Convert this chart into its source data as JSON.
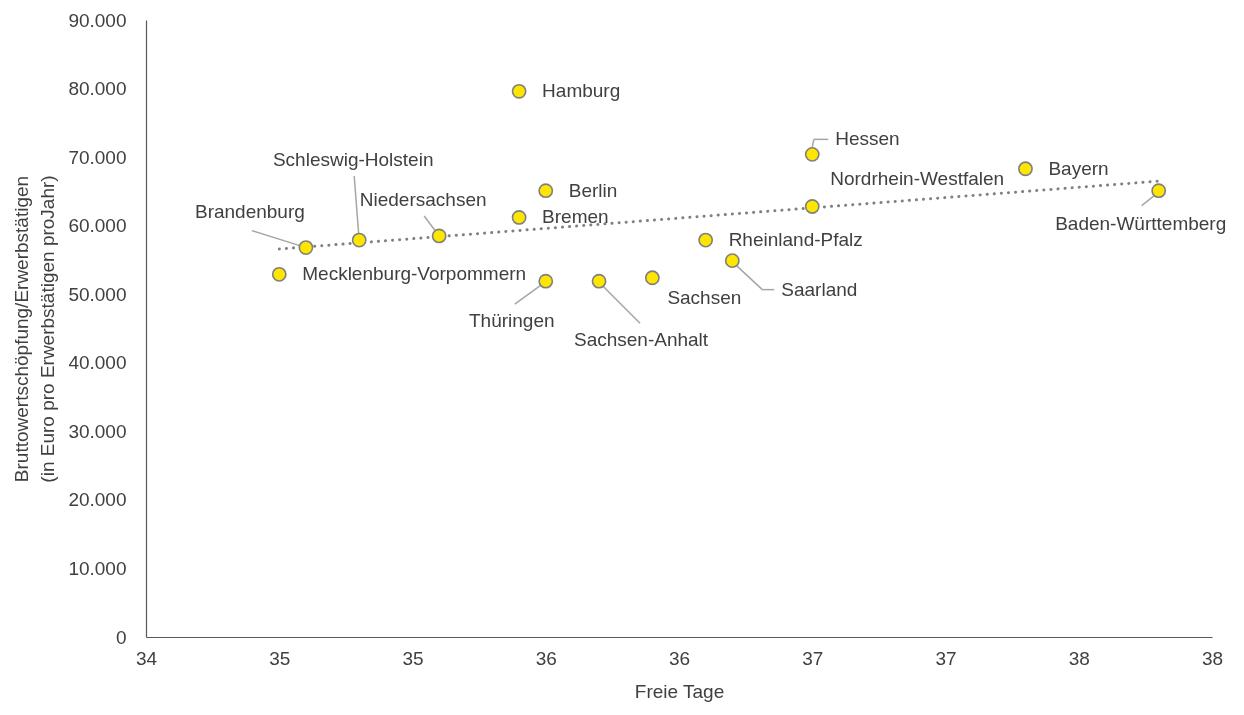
{
  "chart_data": {
    "type": "scatter",
    "xlabel": "Freie Tage",
    "ylabel": "Bruttowertschöpfung/Erwerbstätigen (in Euro pro Erwerbstätigen proJahr)",
    "xlim": [
      34,
      38
    ],
    "xticks": [
      34,
      {
        "value": 34.5,
        "label": "35"
      },
      35,
      {
        "value": 35.5,
        "label": "36"
      },
      36,
      {
        "value": 36.5,
        "label": "37"
      },
      37,
      {
        "value": 37.5,
        "label": "38"
      },
      38
    ],
    "ylim": [
      0,
      90000
    ],
    "yticks": [
      0,
      {
        "value": 10000,
        "label": "10.000"
      },
      {
        "value": 20000,
        "label": "20.000"
      },
      {
        "value": 30000,
        "label": "30.000"
      },
      {
        "value": 40000,
        "label": "40.000"
      },
      {
        "value": 50000,
        "label": "50.000"
      },
      {
        "value": 60000,
        "label": "60.000"
      },
      {
        "value": 70000,
        "label": "70.000"
      },
      {
        "value": 80000,
        "label": "80.000"
      },
      {
        "value": 90000,
        "label": "90.000"
      }
    ],
    "marker": "circle",
    "series": [
      {
        "type": "line",
        "color": "#808080",
        "line_style": "dotted",
        "marker": "none",
        "x": [
          34.5,
          37.8
        ],
        "values": [
          56600,
          66500
        ]
      },
      {
        "type": "scatter",
        "color": "#ffe600",
        "x": [
          34.5,
          34.6,
          34.8,
          35.1,
          35.4,
          35.4,
          35.5,
          35.5,
          35.7,
          35.9,
          36.1,
          36.2,
          36.5,
          36.5,
          37.3,
          37.8
        ],
        "values": [
          52900,
          56800,
          57900,
          58500,
          79600,
          61200,
          65100,
          51900,
          51900,
          52400,
          57900,
          54900,
          70400,
          62800,
          68300,
          65100
        ]
      }
    ],
    "annotations": [
      {
        "text": "Mecklenburg-Vorpommern",
        "x": 34.5,
        "y": 52900
      },
      {
        "text": "Brandenburg",
        "x": 34.6,
        "y": 56800
      },
      {
        "text": "Schleswig-Holstein",
        "x": 34.8,
        "y": 57900
      },
      {
        "text": "Niedersachsen",
        "x": 35.1,
        "y": 58500
      },
      {
        "text": "Hamburg",
        "x": 35.4,
        "y": 79600
      },
      {
        "text": "Bremen",
        "x": 35.4,
        "y": 61200
      },
      {
        "text": "Berlin",
        "x": 35.5,
        "y": 65100
      },
      {
        "text": "Thüringen",
        "x": 35.5,
        "y": 51900
      },
      {
        "text": "Sachsen-Anhalt",
        "x": 35.7,
        "y": 51900
      },
      {
        "text": "Sachsen",
        "x": 35.9,
        "y": 52400
      },
      {
        "text": "Rheinland-Pfalz",
        "x": 36.1,
        "y": 57900
      },
      {
        "text": "Saarland",
        "x": 36.2,
        "y": 54900
      },
      {
        "text": "Hessen",
        "x": 36.5,
        "y": 70400
      },
      {
        "text": "Nordrhein-Westfalen",
        "x": 36.5,
        "y": 62800
      },
      {
        "text": "Bayern",
        "x": 37.3,
        "y": 68300
      },
      {
        "text": "Baden-Württemberg",
        "x": 37.8,
        "y": 65100
      }
    ]
  }
}
